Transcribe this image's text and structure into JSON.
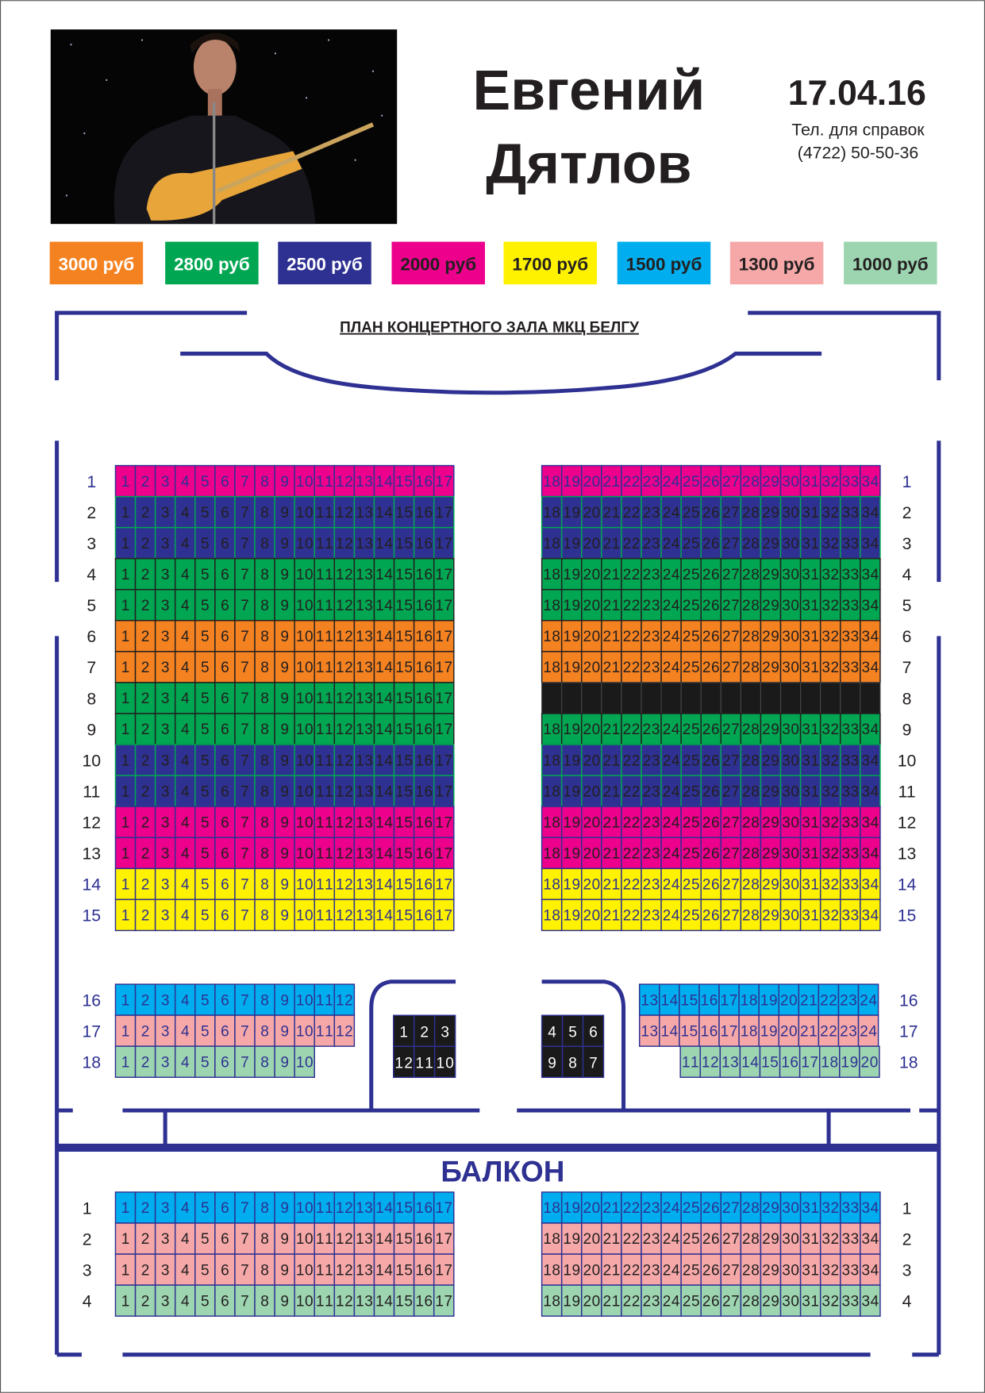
{
  "header": {
    "artist_line1": "Евгений",
    "artist_line2": "Дятлов",
    "date": "17.04.16",
    "phone_label": "Тел. для справок",
    "phone": "(4722) 50-50-36"
  },
  "colors": {
    "walls": "#2e3192",
    "sold": "#1a1a1a"
  },
  "legend": [
    {
      "label": "3000 руб",
      "color": "#f58220",
      "text": "#ffffff"
    },
    {
      "label": "2800 руб",
      "color": "#00a651",
      "text": "#ffffff"
    },
    {
      "label": "2500 руб",
      "color": "#2e3192",
      "text": "#ffffff"
    },
    {
      "label": "2000 руб",
      "color": "#ec008c",
      "text": "#231f20"
    },
    {
      "label": "1700 руб",
      "color": "#fff200",
      "text": "#231f20"
    },
    {
      "label": "1500 руб",
      "color": "#00aeef",
      "text": "#231f20"
    },
    {
      "label": "1300 руб",
      "color": "#f6a8a8",
      "text": "#231f20"
    },
    {
      "label": "1000 руб",
      "color": "#9dd5b1",
      "text": "#231f20"
    }
  ],
  "plan_title": "ПЛАН КОНЦЕРТНОГО ЗАЛА МКЦ БЕЛГУ",
  "parterre": [
    {
      "label": "1",
      "label_color": "#2e3192",
      "left": {
        "price": 3,
        "from": 1,
        "to": 17,
        "text": "#2e3192"
      },
      "right": {
        "price": 3,
        "from": 18,
        "to": 34,
        "text": "#2e3192"
      }
    },
    {
      "label": "2",
      "label_color": "#231f20",
      "left": {
        "price": 2,
        "from": 1,
        "to": 17,
        "text": "#231f20"
      },
      "right": {
        "price": 2,
        "from": 18,
        "to": 34,
        "text": "#231f20"
      }
    },
    {
      "label": "3",
      "label_color": "#231f20",
      "left": {
        "price": 2,
        "from": 1,
        "to": 17,
        "text": "#231f20"
      },
      "right": {
        "price": 2,
        "from": 18,
        "to": 34,
        "text": "#231f20"
      }
    },
    {
      "label": "4",
      "label_color": "#231f20",
      "left": {
        "price": 1,
        "from": 1,
        "to": 17,
        "text": "#231f20"
      },
      "right": {
        "price": 1,
        "from": 18,
        "to": 34,
        "text": "#231f20"
      }
    },
    {
      "label": "5",
      "label_color": "#231f20",
      "left": {
        "price": 1,
        "from": 1,
        "to": 17,
        "text": "#231f20"
      },
      "right": {
        "price": 1,
        "from": 18,
        "to": 34,
        "text": "#231f20"
      }
    },
    {
      "label": "6",
      "label_color": "#231f20",
      "left": {
        "price": 0,
        "from": 1,
        "to": 17,
        "text": "#231f20"
      },
      "right": {
        "price": 0,
        "from": 18,
        "to": 34,
        "text": "#231f20"
      }
    },
    {
      "label": "7",
      "label_color": "#231f20",
      "left": {
        "price": 0,
        "from": 1,
        "to": 17,
        "text": "#231f20"
      },
      "right": {
        "price": 0,
        "from": 18,
        "to": 34,
        "text": "#231f20"
      }
    },
    {
      "label": "8",
      "label_color": "#231f20",
      "left": {
        "price": 1,
        "from": 1,
        "to": 17,
        "text": "#231f20"
      },
      "right": {
        "sold": true,
        "count": 17
      }
    },
    {
      "label": "9",
      "label_color": "#231f20",
      "left": {
        "price": 1,
        "from": 1,
        "to": 17,
        "text": "#231f20"
      },
      "right": {
        "price": 1,
        "from": 18,
        "to": 34,
        "text": "#231f20"
      }
    },
    {
      "label": "10",
      "label_color": "#231f20",
      "left": {
        "price": 2,
        "from": 1,
        "to": 17,
        "text": "#231f20"
      },
      "right": {
        "price": 2,
        "from": 18,
        "to": 34,
        "text": "#231f20"
      }
    },
    {
      "label": "11",
      "label_color": "#231f20",
      "left": {
        "price": 2,
        "from": 1,
        "to": 17,
        "text": "#231f20"
      },
      "right": {
        "price": 2,
        "from": 18,
        "to": 34,
        "text": "#231f20"
      }
    },
    {
      "label": "12",
      "label_color": "#231f20",
      "left": {
        "price": 3,
        "from": 1,
        "to": 17,
        "text": "#231f20"
      },
      "right": {
        "price": 3,
        "from": 18,
        "to": 34,
        "text": "#231f20"
      }
    },
    {
      "label": "13",
      "label_color": "#231f20",
      "left": {
        "price": 3,
        "from": 1,
        "to": 17,
        "text": "#231f20"
      },
      "right": {
        "price": 3,
        "from": 18,
        "to": 34,
        "text": "#231f20"
      }
    },
    {
      "label": "14",
      "label_color": "#2e3192",
      "left": {
        "price": 4,
        "from": 1,
        "to": 17,
        "text": "#2e3192"
      },
      "right": {
        "price": 4,
        "from": 18,
        "to": 34,
        "text": "#2e3192"
      }
    },
    {
      "label": "15",
      "label_color": "#2e3192",
      "left": {
        "price": 4,
        "from": 1,
        "to": 17,
        "text": "#2e3192"
      },
      "right": {
        "price": 4,
        "from": 18,
        "to": 34,
        "text": "#2e3192"
      }
    }
  ],
  "rear": [
    {
      "label": "16",
      "label_color": "#2e3192",
      "left": {
        "price": 5,
        "from": 1,
        "to": 12,
        "text": "#2e3192"
      },
      "right": {
        "price": 5,
        "from": 13,
        "to": 24,
        "text": "#2e3192"
      }
    },
    {
      "label": "17",
      "label_color": "#2e3192",
      "left": {
        "price": 6,
        "from": 1,
        "to": 12,
        "text": "#2e3192"
      },
      "right": {
        "price": 6,
        "from": 13,
        "to": 24,
        "text": "#2e3192"
      }
    },
    {
      "label": "18",
      "label_color": "#2e3192",
      "left": {
        "price": 7,
        "from": 1,
        "to": 10,
        "text": "#2e3192"
      },
      "right": {
        "price": 7,
        "from": 11,
        "to": 20,
        "text": "#2e3192"
      }
    }
  ],
  "boxes": [
    {
      "rows": [
        [
          1,
          2,
          3
        ],
        [
          12,
          11,
          10
        ]
      ]
    },
    {
      "rows": [
        [
          4,
          5,
          6
        ],
        [
          9,
          8,
          7
        ]
      ]
    }
  ],
  "balcony_title": "БАЛКОН",
  "balcony": [
    {
      "label": "1",
      "label_color": "#231f20",
      "left": {
        "price": 5,
        "from": 1,
        "to": 17,
        "text": "#2e3192"
      },
      "right": {
        "price": 5,
        "from": 18,
        "to": 34,
        "text": "#2e3192"
      }
    },
    {
      "label": "2",
      "label_color": "#231f20",
      "left": {
        "price": 6,
        "from": 1,
        "to": 17,
        "text": "#231f20"
      },
      "right": {
        "price": 6,
        "from": 18,
        "to": 34,
        "text": "#231f20"
      }
    },
    {
      "label": "3",
      "label_color": "#231f20",
      "left": {
        "price": 6,
        "from": 1,
        "to": 17,
        "text": "#231f20"
      },
      "right": {
        "price": 6,
        "from": 18,
        "to": 34,
        "text": "#231f20"
      }
    },
    {
      "label": "4",
      "label_color": "#231f20",
      "left": {
        "price": 7,
        "from": 1,
        "to": 17,
        "text": "#231f20"
      },
      "right": {
        "price": 7,
        "from": 18,
        "to": 34,
        "text": "#231f20"
      }
    }
  ]
}
